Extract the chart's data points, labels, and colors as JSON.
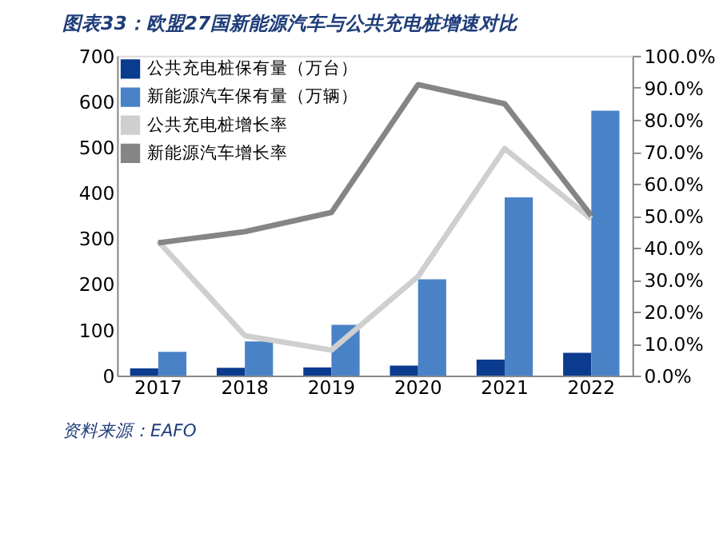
{
  "chart_data": {
    "type": "bar",
    "title": "图表33：欧盟27国新能源汽车与公共充电桩增速对比",
    "categories": [
      "2017",
      "2018",
      "2019",
      "2020",
      "2021",
      "2022"
    ],
    "series": [
      {
        "name": "公共充电桩保有量（万台）",
        "color": "#0b3b8f",
        "values": [
          16,
          17,
          18,
          22,
          35,
          50
        ]
      },
      {
        "name": "新能源汽车保有量（万辆）",
        "color": "#4a82c8",
        "values": [
          52,
          75,
          111,
          211,
          390,
          580
        ]
      },
      {
        "name": "公共充电桩增长率",
        "type": "line",
        "axis": "y2",
        "color": "#cfcfcf",
        "values": [
          42,
          12.5,
          8,
          31,
          71,
          49
        ]
      },
      {
        "name": "新能源汽车增长率",
        "type": "line",
        "axis": "y2",
        "color": "#858585",
        "values": [
          41.5,
          45,
          51,
          91,
          85,
          50
        ]
      }
    ],
    "ylim": [
      0,
      700
    ],
    "yticks": [
      0,
      100,
      200,
      300,
      400,
      500,
      600,
      700
    ],
    "y2lim": [
      0,
      100
    ],
    "y2ticks": [
      {
        "value": 0,
        "label": "0.0%"
      },
      {
        "value": 10,
        "label": "10.0%"
      },
      {
        "value": 20,
        "label": "20.0%"
      },
      {
        "value": 30,
        "label": "30.0%"
      },
      {
        "value": 40,
        "label": "40.0%"
      },
      {
        "value": 50,
        "label": "50.0%"
      },
      {
        "value": 60,
        "label": "60.0%"
      },
      {
        "value": 70,
        "label": "70.0%"
      },
      {
        "value": 80,
        "label": "80.0%"
      },
      {
        "value": 90,
        "label": "90.0%"
      },
      {
        "value": 100,
        "label": "100.0%"
      }
    ],
    "grid": false,
    "legend": "top left",
    "annotations": [
      "资料来源：EAFO"
    ]
  }
}
